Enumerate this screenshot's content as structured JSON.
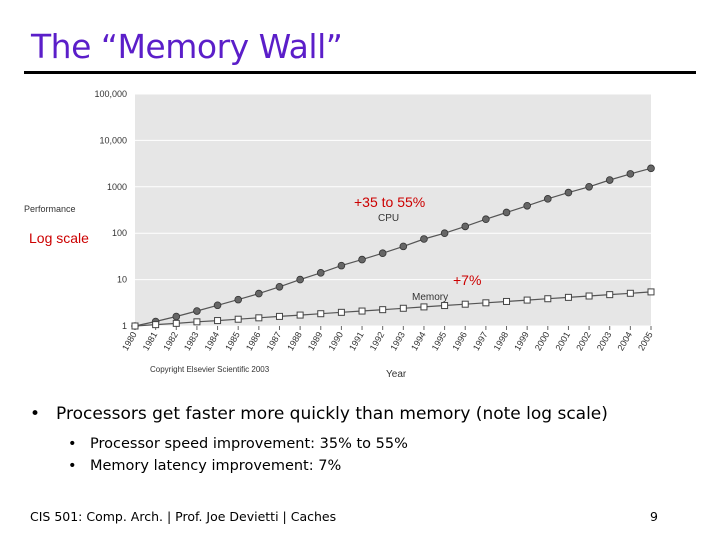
{
  "title": "The “Memory Wall”",
  "chart_data": {
    "type": "line",
    "yscale": "log",
    "ylim": [
      1,
      100000
    ],
    "y_ticks": [
      1,
      10,
      100,
      1000,
      10000,
      100000
    ],
    "y_tick_labels": [
      "1",
      "10",
      "100",
      "1000",
      "10,000",
      "100,000"
    ],
    "x": [
      1980,
      1981,
      1982,
      1983,
      1984,
      1985,
      1986,
      1987,
      1988,
      1989,
      1990,
      1991,
      1992,
      1993,
      1994,
      1995,
      1996,
      1997,
      1998,
      1999,
      2000,
      2001,
      2002,
      2003,
      2004,
      2005
    ],
    "x_tick_labels": [
      "1980",
      "1981",
      "1982",
      "1983",
      "1984",
      "1985",
      "1986",
      "1987",
      "1988",
      "1989",
      "1990",
      "1991",
      "1992",
      "1993",
      "1994",
      "1995",
      "1996",
      "1997",
      "1998",
      "1999",
      "2000",
      "2001",
      "2002",
      "2003",
      "2004",
      "2005"
    ],
    "xlabel": "Year",
    "ylabel": "Performance",
    "series": [
      {
        "name": "CPU",
        "marker": "circle",
        "color": "#555555",
        "values": [
          1,
          1.25,
          1.6,
          2.1,
          2.8,
          3.7,
          5,
          7,
          10,
          14,
          20,
          27,
          37,
          52,
          75,
          100,
          140,
          200,
          280,
          390,
          550,
          750,
          1000,
          1400,
          1900,
          2500
        ]
      },
      {
        "name": "Memory",
        "marker": "square",
        "color": "#555555",
        "values": [
          1,
          1.07,
          1.14,
          1.23,
          1.31,
          1.4,
          1.5,
          1.61,
          1.72,
          1.84,
          1.97,
          2.1,
          2.25,
          2.41,
          2.58,
          2.76,
          2.95,
          3.16,
          3.38,
          3.62,
          3.87,
          4.14,
          4.43,
          4.74,
          5.07,
          5.43
        ]
      }
    ],
    "annotations": {
      "cpu_growth": "+35 to 55%",
      "mem_growth": "+7%",
      "log_scale": "Log scale"
    },
    "copyright": "Copyright Elsevier Scientific 2003"
  },
  "bullets": {
    "main": "Processors get faster more quickly than memory (note log scale)",
    "sub": [
      "Processor speed improvement: 35% to 55%",
      "Memory latency improvement: 7%"
    ]
  },
  "footer": "CIS 501: Comp. Arch.  |  Prof. Joe Devietti  |  Caches",
  "page_number": "9",
  "colors": {
    "title": "#5b1ec9",
    "annotation": "#cc0000",
    "plot_bg": "#e6e6e6"
  }
}
